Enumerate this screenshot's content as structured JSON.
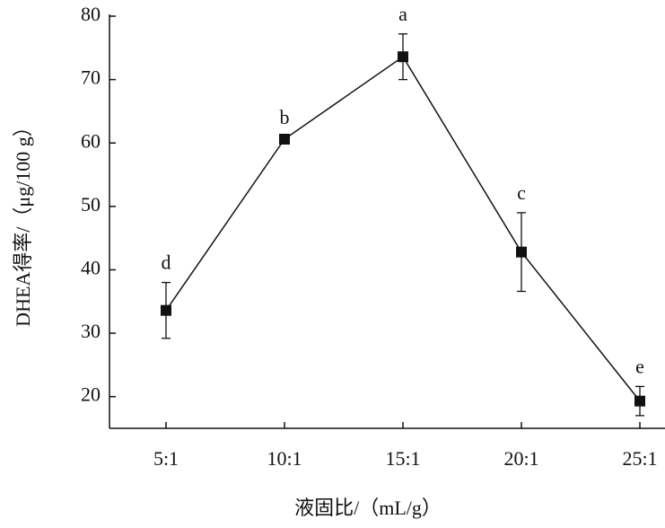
{
  "chart_data": {
    "type": "line",
    "x_label": "液固比/（mL/g）",
    "y_label": "DHEA得率/（μg/100 g）",
    "categories": [
      "5:1",
      "10:1",
      "15:1",
      "20:1",
      "25:1"
    ],
    "series": [
      {
        "color": "#111111",
        "values": [
          33.6,
          60.6,
          73.6,
          42.8,
          19.3
        ],
        "errors": [
          4.4,
          0.3,
          3.6,
          6.2,
          2.3
        ]
      }
    ],
    "annotations": [
      "d",
      "b",
      "a",
      "c",
      "e"
    ],
    "ylim": [
      15,
      80
    ],
    "yticks": [
      20,
      30,
      40,
      50,
      60,
      70,
      80
    ]
  }
}
